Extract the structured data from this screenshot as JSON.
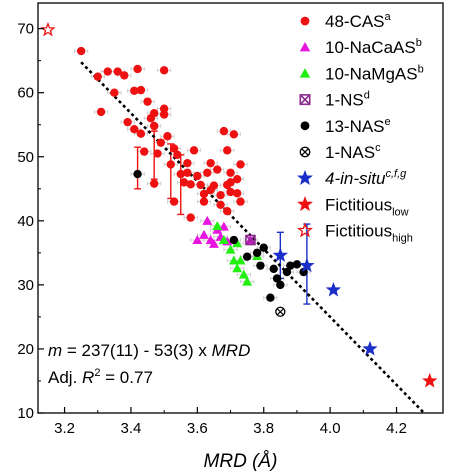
{
  "chart_data": {
    "type": "scatter",
    "xlabel": "MRD (Å)",
    "ylabel": "",
    "xlim": [
      3.12,
      4.34
    ],
    "ylim": [
      10,
      74
    ],
    "xticks": [
      3.2,
      3.4,
      3.6,
      3.8,
      4.0,
      4.2
    ],
    "xtick_labels": [
      "3.2",
      "3.4",
      "3.6",
      "3.8",
      "4.0",
      "4.2"
    ],
    "yticks": [
      10,
      20,
      30,
      40,
      50,
      60,
      70
    ],
    "ytick_labels": [
      "10",
      "20",
      "30",
      "40",
      "50",
      "60",
      "70"
    ],
    "grid": false,
    "legend_position": "top-right",
    "annotation": {
      "line1": {
        "m": "m",
        "eq": " = 237(11) - 53(3) x ",
        "var": "MRD"
      },
      "line2": {
        "prefix": "Adj. ",
        "var": "R",
        "sup": "2",
        "rest": " = 0.77"
      }
    },
    "fit_line": {
      "slope": -53,
      "intercept": 237,
      "x_range": [
        3.25,
        4.28
      ]
    },
    "series": [
      {
        "legend_main": "48-CAS",
        "legend_sup": "a",
        "legend_sub": "",
        "legend_italic": false,
        "marker": "circle",
        "color": "#ee1111",
        "filled": true,
        "points": [
          [
            3.25,
            66.5
          ],
          [
            3.3,
            62.5
          ],
          [
            3.31,
            57.0
          ],
          [
            3.33,
            63.3
          ],
          [
            3.35,
            60.0
          ],
          [
            3.36,
            63.3
          ],
          [
            3.38,
            62.7
          ],
          [
            3.39,
            55.4
          ],
          [
            3.41,
            60.3
          ],
          [
            3.42,
            63.7
          ],
          [
            3.43,
            60.4
          ],
          [
            3.43,
            53.6
          ],
          [
            3.45,
            58.6
          ],
          [
            3.46,
            56.0
          ],
          [
            3.47,
            54.8
          ],
          [
            3.48,
            50.5
          ],
          [
            3.49,
            52.2
          ],
          [
            3.5,
            56.6
          ],
          [
            3.5,
            63.5
          ],
          [
            3.51,
            53.2
          ],
          [
            3.52,
            48.8
          ],
          [
            3.53,
            51.3
          ],
          [
            3.54,
            50.3
          ],
          [
            3.55,
            47.3
          ],
          [
            3.56,
            46.0
          ],
          [
            3.57,
            47.5
          ],
          [
            3.58,
            45.7
          ],
          [
            3.59,
            51.0
          ],
          [
            3.6,
            47.0
          ],
          [
            3.61,
            45.6
          ],
          [
            3.62,
            43.0
          ],
          [
            3.63,
            47.5
          ],
          [
            3.64,
            44.8
          ],
          [
            3.65,
            45.5
          ],
          [
            3.66,
            48.0
          ],
          [
            3.67,
            44.0
          ],
          [
            3.68,
            54.0
          ],
          [
            3.69,
            45.6
          ],
          [
            3.69,
            51.0
          ],
          [
            3.7,
            47.5
          ],
          [
            3.71,
            53.5
          ],
          [
            3.72,
            44.3
          ],
          [
            3.73,
            48.8
          ],
          [
            3.7,
            44.5
          ],
          [
            3.47,
            45.8
          ],
          [
            3.53,
            43.0
          ],
          [
            3.58,
            40.5
          ],
          [
            3.64,
            49.0
          ],
          [
            3.72,
            46.5
          ],
          [
            3.69,
            41.5
          ],
          [
            3.67,
            42.5
          ],
          [
            3.62,
            44.2
          ],
          [
            3.44,
            50.8
          ],
          [
            3.5,
            57.5
          ],
          [
            3.57,
            49.0
          ],
          [
            3.7,
            46.0
          ],
          [
            3.73,
            43.0
          ],
          [
            3.41,
            54.3
          ],
          [
            3.47,
            56.8
          ]
        ],
        "error_bars": [
          {
            "x": 3.42,
            "y": 47.5,
            "lo": 45.0,
            "hi": 51.5
          },
          {
            "x": 3.47,
            "y": 50.0,
            "lo": 46.5,
            "hi": 54.0
          },
          {
            "x": 3.52,
            "y": 48.0,
            "lo": 43.5,
            "hi": 52.0
          },
          {
            "x": 3.55,
            "y": 45.7,
            "lo": 41.0,
            "hi": 50.3
          }
        ]
      },
      {
        "legend_main": "10-NaCaAS",
        "legend_sup": "b",
        "legend_sub": "",
        "legend_italic": false,
        "marker": "triangle",
        "color": "#e815e0",
        "filled": true,
        "points": [
          [
            3.6,
            37.0
          ],
          [
            3.62,
            37.8
          ],
          [
            3.63,
            40.0
          ],
          [
            3.64,
            37.0
          ],
          [
            3.65,
            36.4
          ],
          [
            3.66,
            38.6
          ],
          [
            3.67,
            37.5
          ],
          [
            3.68,
            39.1
          ],
          [
            3.69,
            36.8
          ],
          [
            3.76,
            37.0
          ]
        ]
      },
      {
        "legend_main": "10-NaMgAS",
        "legend_sup": "b",
        "legend_sub": "",
        "legend_italic": false,
        "marker": "triangle",
        "color": "#22ee11",
        "filled": true,
        "points": [
          [
            3.66,
            39.2
          ],
          [
            3.68,
            37.0
          ],
          [
            3.7,
            35.5
          ],
          [
            3.71,
            33.8
          ],
          [
            3.72,
            32.6
          ],
          [
            3.73,
            33.8
          ],
          [
            3.74,
            31.6
          ],
          [
            3.75,
            30.5
          ],
          [
            3.78,
            34.5
          ],
          [
            3.72,
            36.5
          ]
        ]
      },
      {
        "legend_main": "1-NS",
        "legend_sup": "d",
        "legend_sub": "",
        "legend_italic": false,
        "marker": "xsquare",
        "color": "#8b2d90",
        "filled": false,
        "points": [
          [
            3.76,
            37.0
          ]
        ]
      },
      {
        "legend_main": "13-NAS",
        "legend_sup": "e",
        "legend_sub": "",
        "legend_italic": false,
        "marker": "circle",
        "color": "#000000",
        "filled": true,
        "points": [
          [
            3.42,
            47.3
          ],
          [
            3.71,
            37.0
          ],
          [
            3.75,
            34.4
          ],
          [
            3.78,
            35.0
          ],
          [
            3.79,
            33.0
          ],
          [
            3.8,
            35.8
          ],
          [
            3.82,
            28.0
          ],
          [
            3.83,
            32.5
          ],
          [
            3.84,
            31.0
          ],
          [
            3.85,
            30.0
          ],
          [
            3.87,
            32.0
          ],
          [
            3.88,
            33.0
          ],
          [
            3.9,
            33.2
          ],
          [
            3.92,
            32.0
          ]
        ]
      },
      {
        "legend_main": "1-NAS",
        "legend_sup": "c",
        "legend_sub": "",
        "legend_italic": false,
        "marker": "xcircle",
        "color": "#000000",
        "filled": false,
        "points": [
          [
            3.85,
            25.8
          ]
        ]
      },
      {
        "legend_main": "4-in-situ",
        "legend_sup": "c,f,g",
        "legend_sub": "",
        "legend_italic": true,
        "marker": "star",
        "color": "#1a2fc9",
        "filled": true,
        "points": [
          [
            3.85,
            34.6
          ],
          [
            3.93,
            33.0
          ],
          [
            4.01,
            29.2
          ],
          [
            4.12,
            20.0
          ]
        ],
        "error_bars": [
          {
            "x": 3.85,
            "y": 34.6,
            "lo": 31.0,
            "hi": 38.2
          },
          {
            "x": 3.93,
            "y": 33.0,
            "lo": 27.0,
            "hi": 39.5
          }
        ]
      },
      {
        "legend_main": "Fictitious",
        "legend_sup": "",
        "legend_sub": "low",
        "legend_italic": false,
        "marker": "star",
        "color": "#ee1111",
        "filled": true,
        "points": [
          [
            4.3,
            15.0
          ]
        ]
      },
      {
        "legend_main": "Fictitious",
        "legend_sup": "",
        "legend_sub": "high",
        "legend_italic": false,
        "marker": "star",
        "color": "#ee1111",
        "filled": false,
        "points": [
          [
            3.15,
            69.8
          ]
        ]
      }
    ]
  }
}
